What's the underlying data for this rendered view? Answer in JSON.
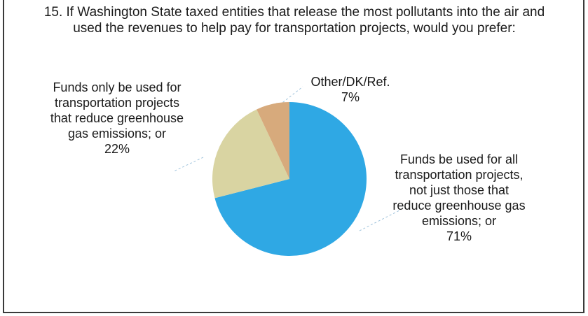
{
  "chart_data": {
    "type": "pie",
    "title": "15. If Washington State taxed entities that release the most pollutants into the air and used the revenues to help pay for transportation projects, would you prefer:",
    "slices": [
      {
        "name": "Funds be used for all transportation projects, not just those that reduce greenhouse gas emissions; or",
        "value": 71,
        "value_label": "71%",
        "color": "#2fa8e4"
      },
      {
        "name": "Funds only be used for transportation projects that reduce greenhouse gas emissions; or",
        "value": 22,
        "value_label": "22%",
        "color": "#d9d4a2"
      },
      {
        "name": "Other/DK/Ref.",
        "value": 7,
        "value_label": "7%",
        "color": "#d7aa7c"
      }
    ]
  }
}
